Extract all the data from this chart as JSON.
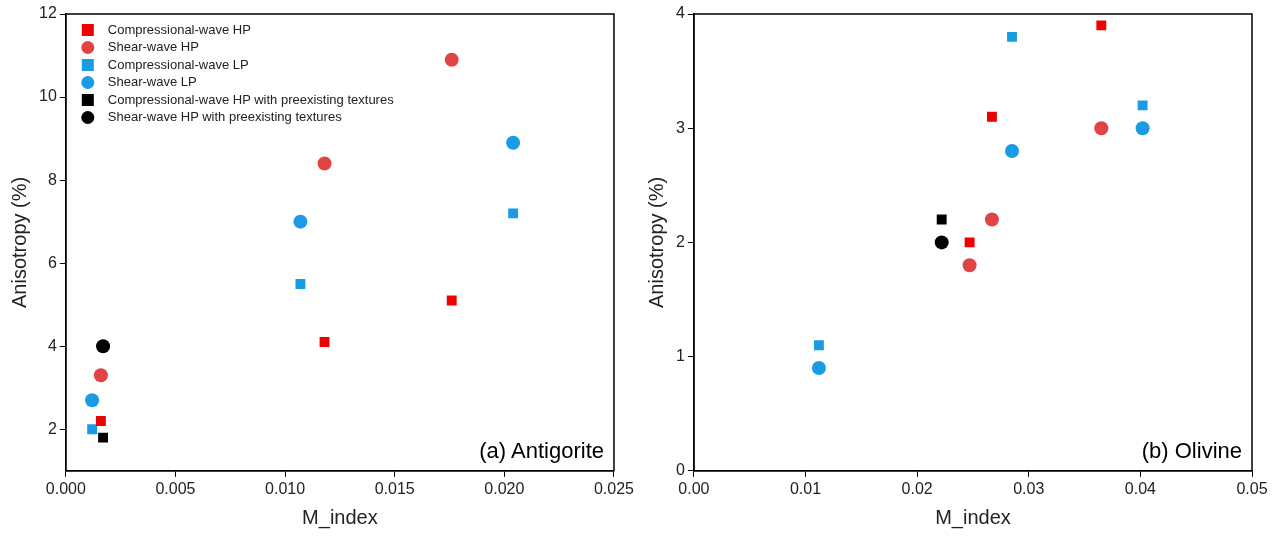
{
  "chart_data": [
    {
      "type": "scatter",
      "xlabel": "M_index",
      "ylabel": "Anisotropy (%)",
      "annotations": [
        "(a) Antigorite"
      ],
      "xlim": [
        0,
        0.025
      ],
      "xticks": [
        {
          "value": 0,
          "label": "0.000"
        },
        {
          "value": 0.005,
          "label": "0.005"
        },
        {
          "value": 0.01,
          "label": "0.010"
        },
        {
          "value": 0.015,
          "label": "0.015"
        },
        {
          "value": 0.02,
          "label": "0.020"
        },
        {
          "value": 0.025,
          "label": "0.025"
        }
      ],
      "ylim": [
        1,
        12
      ],
      "yticks": [
        2,
        4,
        6,
        8,
        10,
        12
      ],
      "grid": false,
      "legend": "top left",
      "series": [
        {
          "name": "Compressional-wave HP",
          "color": "#ee0000",
          "marker": "square",
          "x": [
            0.0016,
            0.0118,
            0.0176
          ],
          "values": [
            2.2,
            4.1,
            5.1
          ]
        },
        {
          "name": "Shear-wave HP",
          "color": "#e04444",
          "marker": "circle",
          "x": [
            0.0016,
            0.0118,
            0.0176
          ],
          "values": [
            3.3,
            8.4,
            10.9
          ]
        },
        {
          "name": "Compressional-wave LP",
          "color": "#1a9be6",
          "marker": "square",
          "x": [
            0.0012,
            0.0107,
            0.0204
          ],
          "values": [
            2.0,
            5.5,
            7.2
          ]
        },
        {
          "name": "Shear-wave LP",
          "color": "#1a9be6",
          "marker": "circle",
          "x": [
            0.0012,
            0.0107,
            0.0204
          ],
          "values": [
            2.7,
            7.0,
            8.9
          ]
        },
        {
          "name": "Compressional-wave HP with preexisting textures",
          "color": "#000000",
          "marker": "square",
          "x": [
            0.0017
          ],
          "values": [
            1.8
          ]
        },
        {
          "name": "Shear-wave HP with preexisting textures",
          "color": "#000000",
          "marker": "circle",
          "x": [
            0.0017
          ],
          "values": [
            4.0
          ]
        }
      ]
    },
    {
      "type": "scatter",
      "xlabel": "M_index",
      "ylabel": "Anisotropy (%)",
      "annotations": [
        "(b) Olivine"
      ],
      "xlim": [
        0,
        0.05
      ],
      "xticks": [
        {
          "value": 0,
          "label": "0.00"
        },
        0.01,
        0.02,
        0.03,
        0.04,
        0.05
      ],
      "ylim": [
        0,
        4
      ],
      "yticks": [
        0,
        1,
        2,
        3,
        4
      ],
      "grid": false,
      "legend": false,
      "series": [
        {
          "color": "#ee0000",
          "marker": "square",
          "x": [
            0.0247,
            0.0267,
            0.0365
          ],
          "values": [
            2.0,
            3.1,
            3.9
          ]
        },
        {
          "color": "#e04444",
          "marker": "circle",
          "x": [
            0.0247,
            0.0267,
            0.0365
          ],
          "values": [
            1.8,
            2.2,
            3.0
          ]
        },
        {
          "color": "#1a9be6",
          "marker": "square",
          "x": [
            0.0112,
            0.0285,
            0.0402
          ],
          "values": [
            1.1,
            3.8,
            3.2
          ]
        },
        {
          "color": "#1a9be6",
          "marker": "circle",
          "x": [
            0.0112,
            0.0285,
            0.0402
          ],
          "values": [
            0.9,
            2.8,
            3.0
          ]
        },
        {
          "color": "#000000",
          "marker": "square",
          "x": [
            0.0222
          ],
          "values": [
            2.2
          ]
        },
        {
          "color": "#000000",
          "marker": "circle",
          "x": [
            0.0222
          ],
          "values": [
            2.0
          ]
        }
      ]
    }
  ]
}
